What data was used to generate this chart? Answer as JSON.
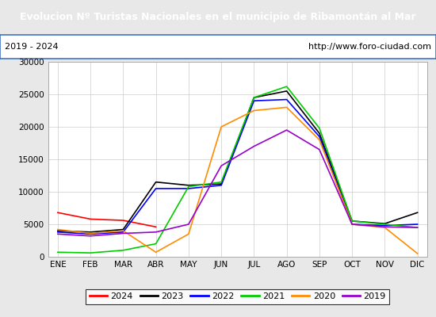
{
  "title": "Evolucion Nº Turistas Nacionales en el municipio de Ribamontán al Mar",
  "subtitle_left": "2019 - 2024",
  "subtitle_right": "http://www.foro-ciudad.com",
  "title_bg_color": "#4472c4",
  "title_fg_color": "#ffffff",
  "months": [
    "ENE",
    "FEB",
    "MAR",
    "ABR",
    "MAY",
    "JUN",
    "JUL",
    "AGO",
    "SEP",
    "OCT",
    "NOV",
    "DIC"
  ],
  "ylim": [
    0,
    30000
  ],
  "yticks": [
    0,
    5000,
    10000,
    15000,
    20000,
    25000,
    30000
  ],
  "series": {
    "2024": {
      "color": "#ff0000",
      "linewidth": 1.2,
      "values": [
        6800,
        5800,
        5600,
        4600,
        null,
        null,
        null,
        null,
        null,
        null,
        null,
        null
      ]
    },
    "2023": {
      "color": "#000000",
      "linewidth": 1.2,
      "values": [
        4000,
        3800,
        4200,
        11500,
        11000,
        11200,
        24500,
        25500,
        19000,
        5500,
        5100,
        6800
      ]
    },
    "2022": {
      "color": "#0000ff",
      "linewidth": 1.2,
      "values": [
        3800,
        3500,
        3800,
        10500,
        10500,
        11000,
        24000,
        24200,
        18500,
        5000,
        4800,
        5000
      ]
    },
    "2021": {
      "color": "#00cc00",
      "linewidth": 1.2,
      "values": [
        700,
        600,
        1000,
        2000,
        10800,
        11500,
        24500,
        26200,
        19800,
        5500,
        5000,
        4500
      ]
    },
    "2020": {
      "color": "#ff8c00",
      "linewidth": 1.2,
      "values": [
        4200,
        3600,
        4000,
        700,
        3500,
        20000,
        22500,
        23000,
        18000,
        5000,
        4500,
        500
      ]
    },
    "2019": {
      "color": "#9900cc",
      "linewidth": 1.2,
      "values": [
        3500,
        3200,
        3600,
        3800,
        5000,
        14000,
        17000,
        19500,
        16500,
        5000,
        4600,
        4500
      ]
    }
  },
  "legend_order": [
    "2024",
    "2023",
    "2022",
    "2021",
    "2020",
    "2019"
  ],
  "outer_bg_color": "#e8e8e8",
  "plot_bg_color": "#e8e8e8",
  "grid_color": "#cccccc"
}
